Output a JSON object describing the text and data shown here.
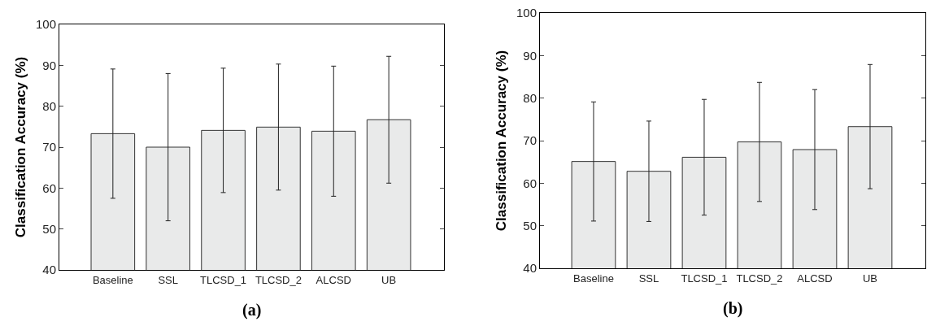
{
  "chart_data": [
    {
      "type": "bar",
      "ylabel": "Classification Accuracy (%)",
      "categories": [
        "Baseline",
        "SSL",
        "TLCSD_1",
        "TLCSD_2",
        "ALCSD",
        "UB"
      ],
      "values": [
        73.3,
        70.0,
        74.1,
        74.9,
        73.9,
        76.7
      ],
      "errors": [
        15.8,
        18.0,
        15.2,
        15.4,
        15.9,
        15.5
      ],
      "color": "#e9eaea",
      "ylim": [
        40,
        100
      ],
      "yticks": [
        40,
        50,
        60,
        70,
        80,
        90,
        100
      ],
      "grid": false,
      "annotations": [
        "(a)"
      ]
    },
    {
      "type": "bar",
      "ylabel": "Classification Accuracy (%)",
      "categories": [
        "Baseline",
        "SSL",
        "TLCSD_1",
        "TLCSD_2",
        "ALCSD",
        "UB"
      ],
      "values": [
        65.1,
        62.8,
        66.1,
        69.7,
        67.9,
        73.3
      ],
      "errors": [
        14.0,
        11.8,
        13.6,
        14.0,
        14.1,
        14.6
      ],
      "color": "#e9eaea",
      "ylim": [
        40,
        100
      ],
      "yticks": [
        40,
        50,
        60,
        70,
        80,
        90,
        100
      ],
      "grid": false,
      "annotations": [
        "(b)"
      ]
    }
  ]
}
